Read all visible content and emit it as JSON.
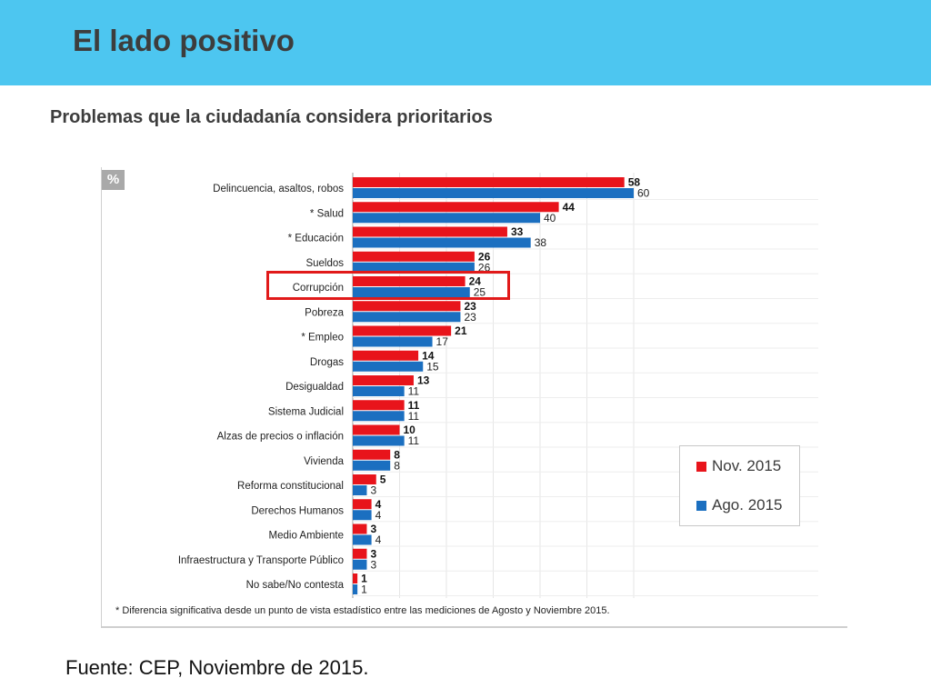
{
  "header": {
    "title": "El lado positivo"
  },
  "subtitle": "Problemas que la ciudadanía considera prioritarios",
  "source": "Fuente: CEP, Noviembre de 2015.",
  "colors": {
    "nov": "#e8141b",
    "ago": "#1b6fc0",
    "header": "#4dc6f0"
  },
  "chart_data": {
    "type": "bar",
    "orientation": "horizontal",
    "unit_badge": "%",
    "categories": [
      "Delincuencia, asaltos, robos",
      "* Salud",
      "* Educación",
      "Sueldos",
      "Corrupción",
      "Pobreza",
      "* Empleo",
      "Drogas",
      "Desigualdad",
      "Sistema Judicial",
      "Alzas de precios o inflación",
      "Vivienda",
      "Reforma constitucional",
      "Derechos Humanos",
      "Medio Ambiente",
      "Infraestructura y Transporte Público",
      "No sabe/No contesta"
    ],
    "series": [
      {
        "name": "Nov. 2015",
        "values": [
          58,
          44,
          33,
          26,
          24,
          23,
          21,
          14,
          13,
          11,
          10,
          8,
          5,
          4,
          3,
          3,
          1
        ]
      },
      {
        "name": "Ago. 2015",
        "values": [
          60,
          40,
          38,
          26,
          25,
          23,
          17,
          15,
          11,
          11,
          11,
          8,
          3,
          4,
          4,
          3,
          1
        ]
      }
    ],
    "highlighted_category": "Corrupción",
    "footnote": "* Diferencia significativa desde un punto de vista estadístico entre las mediciones de Agosto y Noviembre 2015.",
    "legend_position": "bottom-right"
  }
}
